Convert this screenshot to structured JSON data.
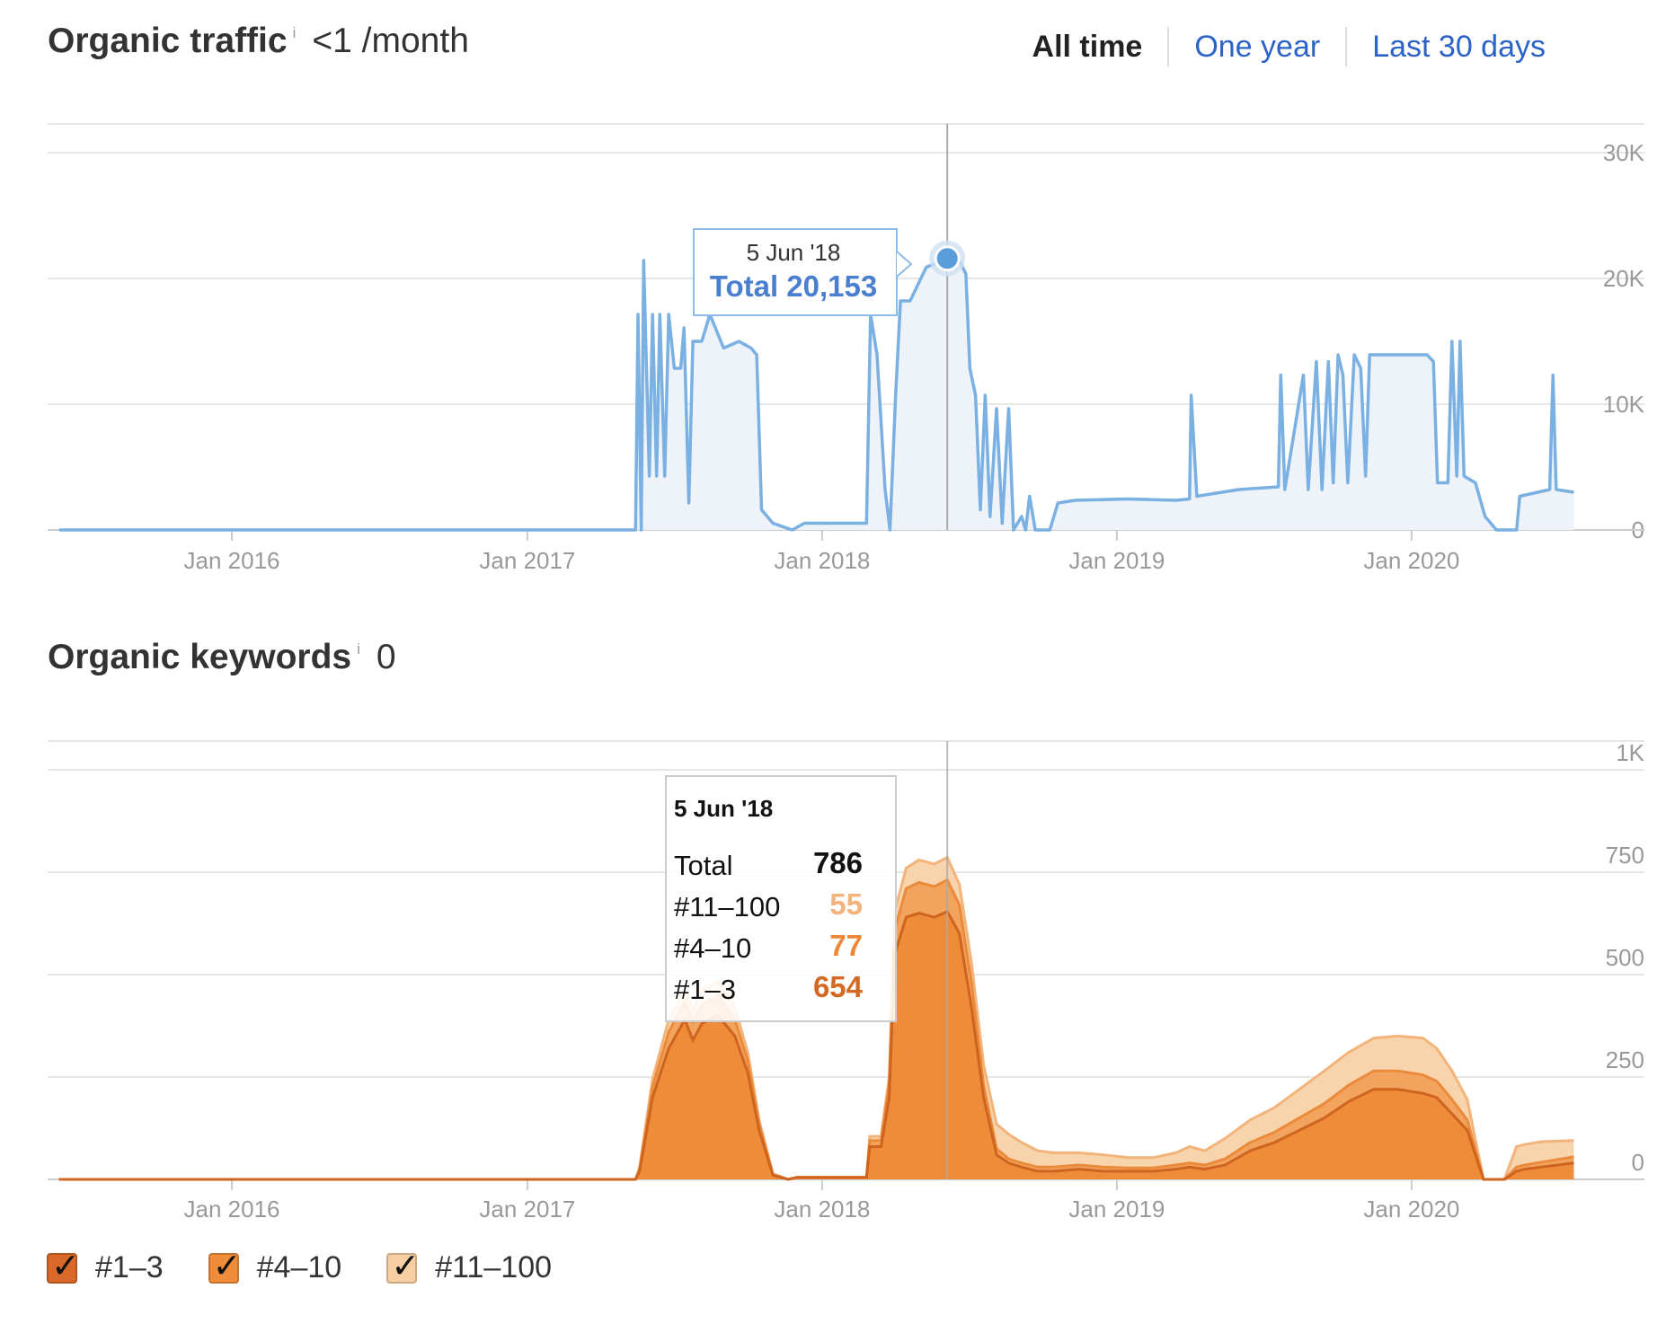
{
  "traffic": {
    "title": "Organic traffic",
    "info": "i",
    "value": "<1 /month",
    "ranges": [
      {
        "label": "All time",
        "active": true
      },
      {
        "label": "One year",
        "active": false
      },
      {
        "label": "Last 30 days",
        "active": false
      }
    ]
  },
  "keywords": {
    "title": "Organic keywords",
    "info": "i",
    "value": "0"
  },
  "legend": [
    {
      "label": "#1–3",
      "color": "#d9692a",
      "checked": true
    },
    {
      "label": "#4–10",
      "color": "#ef8c3a",
      "checked": true
    },
    {
      "label": "#11–100",
      "color": "#f8cfa2",
      "checked": true
    }
  ],
  "tooltip_traffic": {
    "date": "5 Jun '18",
    "text": "Total 20,153"
  },
  "tooltip_keywords": {
    "date": "5 Jun '18",
    "rows": [
      {
        "label": "Total",
        "value": "786",
        "color": "#111111"
      },
      {
        "label": "#11–100",
        "value": "55",
        "color": "#f3b47c"
      },
      {
        "label": "#4–10",
        "value": "77",
        "color": "#ee8838"
      },
      {
        "label": "#1–3",
        "value": "654",
        "color": "#d36a24"
      }
    ]
  },
  "colors": {
    "traffic_line": "#7ab0e2",
    "traffic_fill": "#eef3fa",
    "tooltip_blue": "#4a7fd0",
    "grid": "#e6e6e6",
    "axis_text": "#999999"
  },
  "chart_data": [
    {
      "type": "area",
      "title": "Organic traffic",
      "x_ticks": [
        "Jan 2016",
        "Jan 2017",
        "Jan 2018",
        "Jan 2019",
        "Jan 2020"
      ],
      "y_ticks": [
        "0",
        "10K",
        "20K",
        "30K"
      ],
      "ylim": [
        0,
        30000
      ],
      "grid": true,
      "crosshair_date": "2018-06-05",
      "series": [
        {
          "values": [
            [
              "2015-06-01",
              0
            ],
            [
              "2017-05-15",
              0
            ],
            [
              "2017-05-18",
              16000
            ],
            [
              "2017-05-22",
              0
            ],
            [
              "2017-05-25",
              20000
            ],
            [
              "2017-06-01",
              4000
            ],
            [
              "2017-06-05",
              16000
            ],
            [
              "2017-06-10",
              4000
            ],
            [
              "2017-06-14",
              16000
            ],
            [
              "2017-06-20",
              4000
            ],
            [
              "2017-06-25",
              16000
            ],
            [
              "2017-07-02",
              12000
            ],
            [
              "2017-07-10",
              12000
            ],
            [
              "2017-07-14",
              15000
            ],
            [
              "2017-07-20",
              2000
            ],
            [
              "2017-07-25",
              14000
            ],
            [
              "2017-08-05",
              14000
            ],
            [
              "2017-08-15",
              16000
            ],
            [
              "2017-09-01",
              13500
            ],
            [
              "2017-09-20",
              14000
            ],
            [
              "2017-10-05",
              13500
            ],
            [
              "2017-10-12",
              13000
            ],
            [
              "2017-10-18",
              1500
            ],
            [
              "2017-11-01",
              500
            ],
            [
              "2017-11-25",
              0
            ],
            [
              "2017-12-10",
              500
            ],
            [
              "2018-02-25",
              500
            ],
            [
              "2018-03-02",
              16000
            ],
            [
              "2018-03-10",
              13000
            ],
            [
              "2018-03-20",
              3000
            ],
            [
              "2018-03-26",
              0
            ],
            [
              "2018-04-02",
              10000
            ],
            [
              "2018-04-08",
              17000
            ],
            [
              "2018-04-20",
              17000
            ],
            [
              "2018-05-10",
              19500
            ],
            [
              "2018-06-05",
              20153
            ],
            [
              "2018-06-20",
              20000
            ],
            [
              "2018-06-28",
              19000
            ],
            [
              "2018-07-03",
              12000
            ],
            [
              "2018-07-10",
              10000
            ],
            [
              "2018-07-16",
              1500
            ],
            [
              "2018-07-22",
              10000
            ],
            [
              "2018-07-28",
              1000
            ],
            [
              "2018-08-05",
              9000
            ],
            [
              "2018-08-12",
              500
            ],
            [
              "2018-08-20",
              9000
            ],
            [
              "2018-08-26",
              0
            ],
            [
              "2018-09-05",
              1000
            ],
            [
              "2018-09-10",
              0
            ],
            [
              "2018-09-15",
              2500
            ],
            [
              "2018-09-22",
              0
            ],
            [
              "2018-10-10",
              0
            ],
            [
              "2018-10-20",
              2000
            ],
            [
              "2018-11-10",
              2200
            ],
            [
              "2019-01-15",
              2300
            ],
            [
              "2019-03-15",
              2200
            ],
            [
              "2019-04-01",
              2300
            ],
            [
              "2019-04-03",
              10000
            ],
            [
              "2019-04-10",
              2500
            ],
            [
              "2019-06-01",
              3000
            ],
            [
              "2019-07-20",
              3200
            ],
            [
              "2019-07-23",
              11500
            ],
            [
              "2019-07-28",
              3000
            ],
            [
              "2019-08-20",
              11500
            ],
            [
              "2019-08-26",
              3000
            ],
            [
              "2019-09-05",
              12500
            ],
            [
              "2019-09-12",
              3000
            ],
            [
              "2019-09-20",
              12500
            ],
            [
              "2019-09-26",
              3500
            ],
            [
              "2019-10-02",
              13000
            ],
            [
              "2019-10-08",
              11500
            ],
            [
              "2019-10-14",
              3500
            ],
            [
              "2019-10-22",
              13000
            ],
            [
              "2019-10-30",
              12000
            ],
            [
              "2019-11-05",
              4000
            ],
            [
              "2019-11-10",
              13000
            ],
            [
              "2019-12-15",
              13000
            ],
            [
              "2020-01-20",
              13000
            ],
            [
              "2020-01-28",
              12500
            ],
            [
              "2020-02-02",
              3500
            ],
            [
              "2020-02-15",
              3500
            ],
            [
              "2020-02-20",
              14000
            ],
            [
              "2020-02-26",
              4000
            ],
            [
              "2020-03-01",
              14000
            ],
            [
              "2020-03-06",
              4000
            ],
            [
              "2020-03-20",
              3500
            ],
            [
              "2020-04-01",
              1000
            ],
            [
              "2020-04-15",
              0
            ],
            [
              "2020-05-10",
              0
            ],
            [
              "2020-05-14",
              2500
            ],
            [
              "2020-06-20",
              3000
            ],
            [
              "2020-06-24",
              11500
            ],
            [
              "2020-06-28",
              3000
            ],
            [
              "2020-07-20",
              2800
            ]
          ]
        }
      ]
    },
    {
      "type": "area",
      "title": "Organic keywords",
      "x_ticks": [
        "Jan 2016",
        "Jan 2017",
        "Jan 2018",
        "Jan 2019",
        "Jan 2020"
      ],
      "y_ticks": [
        "0",
        "250",
        "500",
        "750",
        "1K"
      ],
      "ylim": [
        0,
        1000
      ],
      "grid": true,
      "stacked": true,
      "crosshair_date": "2018-06-05",
      "x": [
        "2015-06-01",
        "2017-05-15",
        "2017-05-20",
        "2017-06-05",
        "2017-06-25",
        "2017-07-15",
        "2017-07-25",
        "2017-08-05",
        "2017-08-25",
        "2017-09-15",
        "2017-10-01",
        "2017-10-15",
        "2017-11-01",
        "2017-11-20",
        "2017-12-01",
        "2018-02-25",
        "2018-03-01",
        "2018-03-15",
        "2018-03-25",
        "2018-04-01",
        "2018-04-15",
        "2018-05-01",
        "2018-05-20",
        "2018-06-05",
        "2018-06-20",
        "2018-07-05",
        "2018-07-20",
        "2018-08-05",
        "2018-08-20",
        "2018-09-05",
        "2018-09-25",
        "2018-10-15",
        "2018-11-15",
        "2018-12-15",
        "2019-01-15",
        "2019-02-15",
        "2019-03-15",
        "2019-04-01",
        "2019-04-20",
        "2019-05-15",
        "2019-06-15",
        "2019-07-15",
        "2019-08-15",
        "2019-09-15",
        "2019-10-15",
        "2019-11-15",
        "2019-12-15",
        "2020-01-15",
        "2020-02-01",
        "2020-02-20",
        "2020-03-10",
        "2020-03-30",
        "2020-04-10",
        "2020-04-25",
        "2020-05-10",
        "2020-05-20",
        "2020-06-10",
        "2020-07-20"
      ],
      "series": [
        {
          "name": "#1–3",
          "values": [
            0,
            0,
            20,
            200,
            320,
            390,
            340,
            380,
            400,
            350,
            260,
            120,
            10,
            0,
            5,
            5,
            80,
            80,
            200,
            550,
            640,
            650,
            640,
            654,
            600,
            420,
            200,
            60,
            40,
            30,
            20,
            20,
            25,
            20,
            20,
            20,
            25,
            30,
            25,
            35,
            70,
            90,
            120,
            150,
            190,
            220,
            220,
            210,
            200,
            160,
            120,
            0,
            0,
            0,
            20,
            25,
            30,
            40
          ]
        },
        {
          "name": "#4–10",
          "values": [
            0,
            0,
            5,
            25,
            40,
            45,
            45,
            45,
            50,
            40,
            30,
            15,
            2,
            0,
            0,
            0,
            15,
            15,
            30,
            60,
            70,
            75,
            75,
            77,
            70,
            60,
            30,
            15,
            10,
            10,
            10,
            10,
            10,
            10,
            8,
            8,
            10,
            10,
            10,
            15,
            20,
            25,
            30,
            35,
            40,
            45,
            45,
            45,
            40,
            35,
            25,
            0,
            0,
            0,
            10,
            10,
            12,
            15
          ]
        },
        {
          "name": "#11–100",
          "values": [
            0,
            0,
            5,
            20,
            30,
            30,
            30,
            35,
            35,
            30,
            20,
            10,
            2,
            0,
            0,
            0,
            10,
            10,
            20,
            45,
            50,
            55,
            55,
            55,
            50,
            50,
            50,
            60,
            60,
            50,
            40,
            35,
            30,
            30,
            25,
            25,
            30,
            40,
            35,
            50,
            55,
            60,
            70,
            80,
            80,
            80,
            85,
            90,
            80,
            70,
            50,
            0,
            0,
            0,
            50,
            50,
            50,
            40
          ]
        }
      ]
    }
  ]
}
